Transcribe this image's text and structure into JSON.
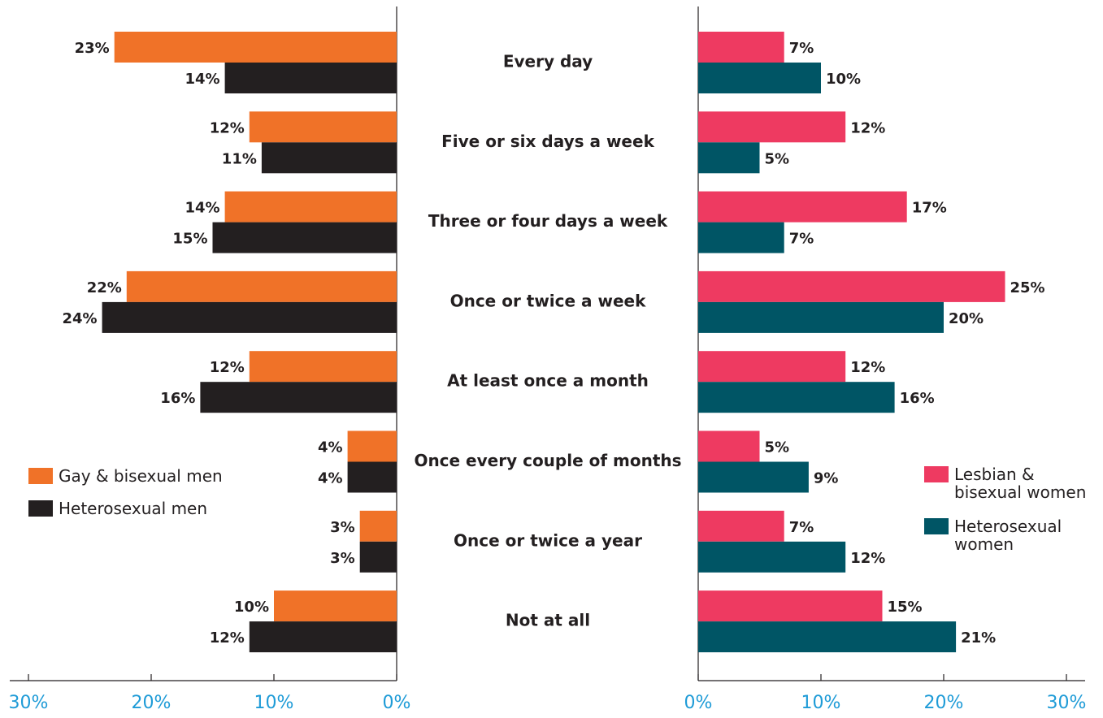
{
  "chart_data": [
    {
      "type": "bar",
      "orientation": "horizontal",
      "categories": [
        "Every day",
        "Five or six days a week",
        "Three or four days a week",
        "Once or twice a week",
        "At least once a month",
        "Once every couple of months",
        "Once or twice a year",
        "Not at all"
      ],
      "series": [
        {
          "name": "Gay & bisexual men",
          "color": "#f07228",
          "values": [
            23,
            12,
            14,
            22,
            12,
            4,
            3,
            10
          ],
          "value_labels": [
            "23%",
            "12%",
            "14%",
            "22%",
            "12%",
            "4%",
            "3%",
            "10%"
          ]
        },
        {
          "name": "Heterosexual men",
          "color": "#231f20",
          "values": [
            14,
            11,
            15,
            24,
            16,
            4,
            3,
            12
          ],
          "value_labels": [
            "14%",
            "11%",
            "15%",
            "24%",
            "16%",
            "4%",
            "3%",
            "12%"
          ]
        }
      ],
      "xlim": [
        30,
        0
      ],
      "xticks": [
        {
          "value": 30,
          "label": "30%"
        },
        {
          "value": 20,
          "label": "20%"
        },
        {
          "value": 10,
          "label": "10%"
        },
        {
          "value": 0,
          "label": "0%"
        }
      ],
      "legend": "lower-left"
    },
    {
      "type": "bar",
      "orientation": "horizontal",
      "series": [
        {
          "name": "Lesbian & bisexual women",
          "color": "#ee3a61",
          "values": [
            7,
            12,
            17,
            25,
            12,
            5,
            7,
            15
          ],
          "value_labels": [
            "7%",
            "12%",
            "17%",
            "25%",
            "12%",
            "5%",
            "7%",
            "15%"
          ]
        },
        {
          "name": "Heterosexual women",
          "color": "#005565",
          "values": [
            10,
            5,
            7,
            20,
            16,
            9,
            12,
            21
          ],
          "value_labels": [
            "10%",
            "5%",
            "7%",
            "20%",
            "16%",
            "9%",
            "12%",
            "21%"
          ]
        }
      ],
      "xlim": [
        0,
        30
      ],
      "xticks": [
        {
          "value": 0,
          "label": "0%"
        },
        {
          "value": 10,
          "label": "10%"
        },
        {
          "value": 20,
          "label": "20%"
        },
        {
          "value": 30,
          "label": "30%"
        }
      ],
      "legend": "lower-right"
    }
  ]
}
